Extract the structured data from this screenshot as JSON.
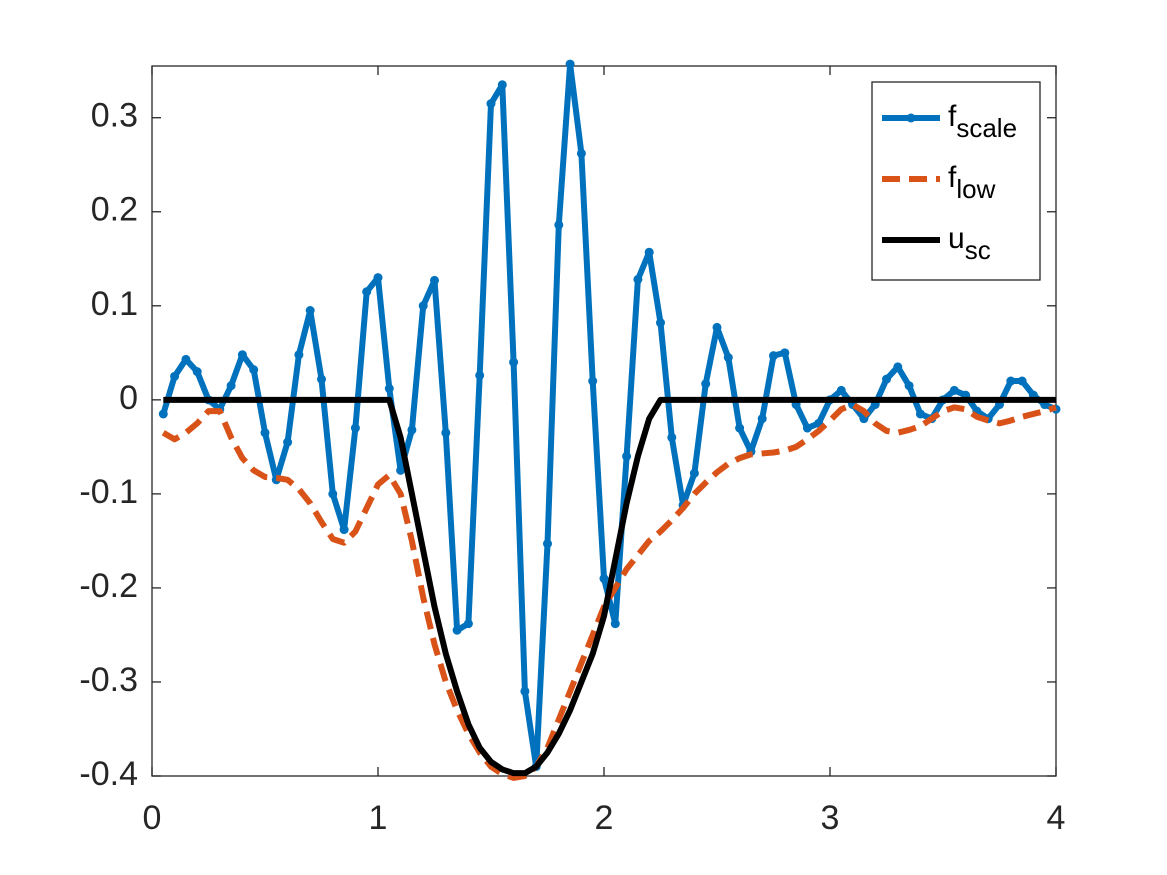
{
  "chart_data": {
    "type": "line",
    "x": [
      0.05,
      0.1,
      0.15,
      0.2,
      0.25,
      0.3,
      0.35,
      0.4,
      0.45,
      0.5,
      0.55,
      0.6,
      0.65,
      0.7,
      0.75,
      0.8,
      0.85,
      0.9,
      0.95,
      1.0,
      1.05,
      1.1,
      1.15,
      1.2,
      1.25,
      1.3,
      1.35,
      1.4,
      1.45,
      1.5,
      1.55,
      1.6,
      1.65,
      1.7,
      1.75,
      1.8,
      1.85,
      1.9,
      1.95,
      2.0,
      2.05,
      2.1,
      2.15,
      2.2,
      2.25,
      2.3,
      2.35,
      2.4,
      2.45,
      2.5,
      2.55,
      2.6,
      2.65,
      2.7,
      2.75,
      2.8,
      2.85,
      2.9,
      2.95,
      3.0,
      3.05,
      3.1,
      3.15,
      3.2,
      3.25,
      3.3,
      3.35,
      3.4,
      3.45,
      3.5,
      3.55,
      3.6,
      3.65,
      3.7,
      3.75,
      3.8,
      3.85,
      3.9,
      3.95,
      4.0
    ],
    "series": [
      {
        "name": "f",
        "subscript": "scale",
        "color": "#0072bd",
        "style": "solid",
        "markers": true,
        "values": [
          -0.015,
          0.025,
          0.043,
          0.03,
          0.0,
          -0.01,
          0.015,
          0.048,
          0.032,
          -0.035,
          -0.085,
          -0.045,
          0.048,
          0.095,
          0.022,
          -0.1,
          -0.138,
          -0.03,
          0.115,
          0.13,
          0.012,
          -0.075,
          -0.032,
          0.1,
          0.127,
          -0.035,
          -0.245,
          -0.238,
          0.026,
          0.315,
          0.335,
          0.04,
          -0.31,
          -0.39,
          -0.153,
          0.186,
          0.357,
          0.262,
          0.02,
          -0.19,
          -0.238,
          -0.06,
          0.128,
          0.157,
          0.082,
          -0.04,
          -0.112,
          -0.078,
          0.017,
          0.077,
          0.045,
          -0.03,
          -0.055,
          -0.02,
          0.047,
          0.05,
          -0.005,
          -0.03,
          -0.025,
          0.0,
          0.01,
          -0.005,
          -0.02,
          -0.005,
          0.022,
          0.035,
          0.015,
          -0.015,
          -0.02,
          0.0,
          0.01,
          0.005,
          -0.012,
          -0.02,
          -0.005,
          0.02,
          0.02,
          0.005,
          -0.005,
          -0.01
        ]
      },
      {
        "name": "f",
        "subscript": "low",
        "color": "#d95319",
        "style": "dashed",
        "markers": false,
        "values": [
          -0.035,
          -0.042,
          -0.035,
          -0.025,
          -0.012,
          -0.012,
          -0.04,
          -0.062,
          -0.075,
          -0.082,
          -0.083,
          -0.085,
          -0.095,
          -0.11,
          -0.13,
          -0.148,
          -0.152,
          -0.14,
          -0.115,
          -0.09,
          -0.08,
          -0.1,
          -0.15,
          -0.21,
          -0.26,
          -0.3,
          -0.33,
          -0.355,
          -0.375,
          -0.39,
          -0.398,
          -0.402,
          -0.4,
          -0.39,
          -0.37,
          -0.34,
          -0.31,
          -0.28,
          -0.25,
          -0.22,
          -0.2,
          -0.18,
          -0.165,
          -0.15,
          -0.14,
          -0.128,
          -0.115,
          -0.1,
          -0.088,
          -0.077,
          -0.068,
          -0.062,
          -0.058,
          -0.057,
          -0.056,
          -0.054,
          -0.05,
          -0.042,
          -0.033,
          -0.022,
          -0.01,
          -0.005,
          -0.012,
          -0.025,
          -0.033,
          -0.035,
          -0.032,
          -0.028,
          -0.02,
          -0.012,
          -0.008,
          -0.01,
          -0.018,
          -0.022,
          -0.025,
          -0.022,
          -0.018,
          -0.015,
          -0.012,
          -0.008
        ]
      },
      {
        "name": "u",
        "subscript": "sc",
        "color": "#000000",
        "style": "solid",
        "markers": false,
        "values": [
          0,
          0,
          0,
          0,
          0,
          0,
          0,
          0,
          0,
          0,
          0,
          0,
          0,
          0,
          0,
          0,
          0,
          0,
          0,
          0,
          0,
          -0.04,
          -0.1,
          -0.16,
          -0.22,
          -0.27,
          -0.31,
          -0.345,
          -0.37,
          -0.385,
          -0.393,
          -0.397,
          -0.397,
          -0.39,
          -0.375,
          -0.355,
          -0.33,
          -0.3,
          -0.27,
          -0.23,
          -0.17,
          -0.11,
          -0.06,
          -0.02,
          0,
          0,
          0,
          0,
          0,
          0,
          0,
          0,
          0,
          0,
          0,
          0,
          0,
          0,
          0,
          0,
          0,
          0,
          0,
          0,
          0,
          0,
          0,
          0,
          0,
          0,
          0,
          0,
          0,
          0,
          0,
          0,
          0,
          0,
          0,
          0
        ]
      }
    ],
    "xlim": [
      0,
      4
    ],
    "xticks": [
      0,
      1,
      2,
      3,
      4
    ],
    "ylim": [
      -0.4,
      0.355
    ],
    "yticks": [
      -0.4,
      -0.3,
      -0.2,
      -0.1,
      0,
      0.1,
      0.2,
      0.3
    ],
    "grid": false,
    "legend": "northeast"
  }
}
